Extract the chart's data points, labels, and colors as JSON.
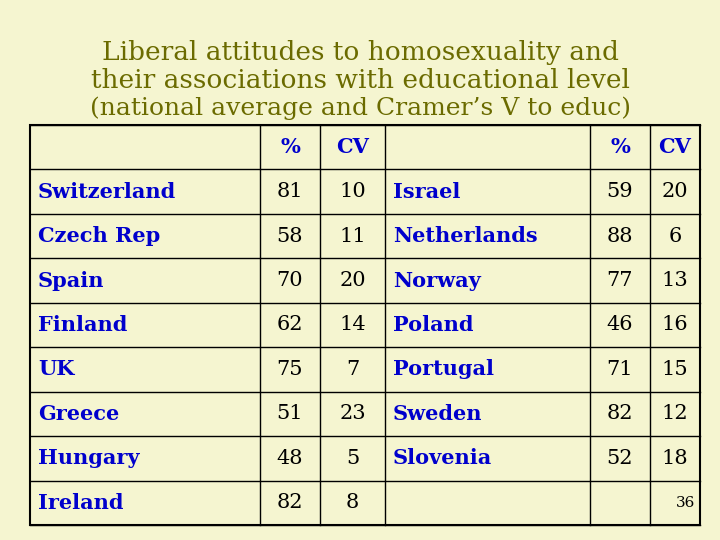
{
  "title_line1": "Liberal attitudes to homosexuality and",
  "title_line2": "their associations with educational level",
  "title_line3": "(national average and Cramer’s V to educ)",
  "background_color": "#f5f5d0",
  "title_color": "#6b6b00",
  "table_text_color": "#0000cc",
  "table_number_color": "#000000",
  "left_countries": [
    "Switzerland",
    "Czech Rep",
    "Spain",
    "Finland",
    "UK",
    "Greece",
    "Hungary",
    "Ireland"
  ],
  "left_pct": [
    81,
    58,
    70,
    62,
    75,
    51,
    48,
    82
  ],
  "left_cv": [
    10,
    11,
    20,
    14,
    7,
    23,
    5,
    8
  ],
  "right_countries": [
    "Israel",
    "Netherlands",
    "Norway",
    "Poland",
    "Portugal",
    "Sweden",
    "Slovenia",
    ""
  ],
  "right_pct": [
    59,
    88,
    77,
    46,
    71,
    82,
    52,
    ""
  ],
  "right_cv": [
    20,
    6,
    13,
    16,
    15,
    12,
    18,
    ""
  ],
  "slide_number": "36",
  "title_fontsize": 19,
  "table_fontsize": 15,
  "header_fontsize": 15
}
